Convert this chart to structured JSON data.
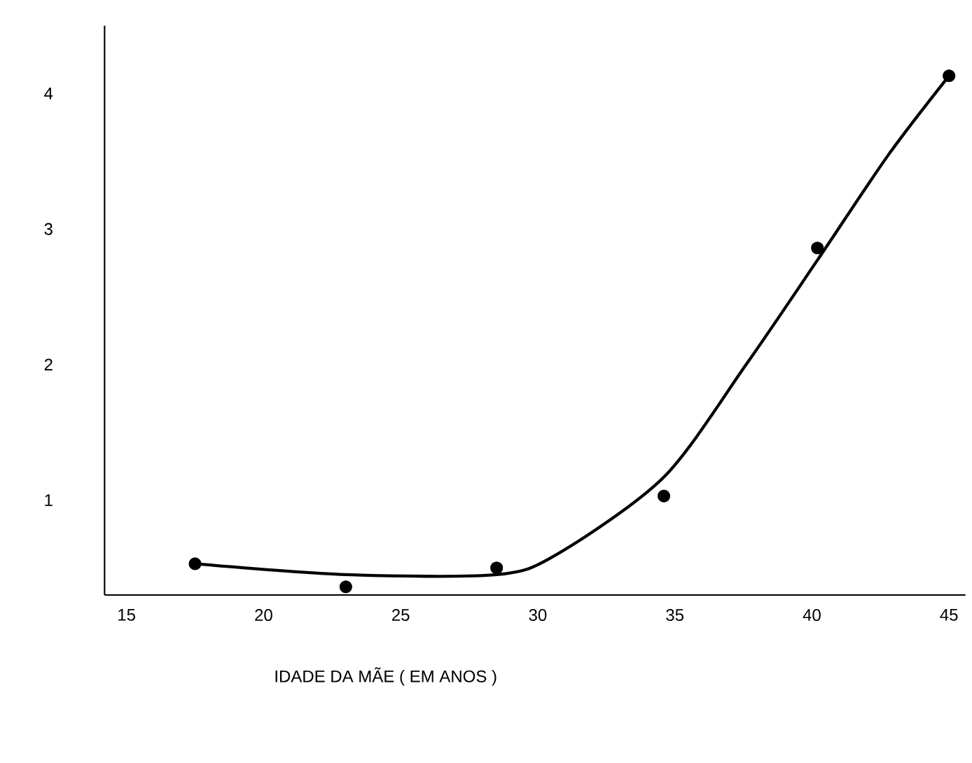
{
  "chart_data": {
    "type": "scatter",
    "xlabel": "IDADE DA MÃE ( EM ANOS )",
    "xlim": [
      14.2,
      45.6
    ],
    "xticks": [
      15,
      20,
      25,
      30,
      35,
      40,
      45
    ],
    "ylim": [
      0.3,
      4.5
    ],
    "yticks": [
      1,
      2,
      3,
      4
    ],
    "marker": "circle",
    "grid": false,
    "series": [
      {
        "color": "#000000",
        "x": [
          17.5,
          23,
          28.5,
          34.6,
          40.2,
          45
        ],
        "values": [
          0.53,
          0.36,
          0.5,
          1.03,
          2.86,
          4.13
        ]
      },
      {
        "type": "line",
        "color": "#000000",
        "marker": "none",
        "x": [
          17.5,
          23,
          28.5,
          30.7,
          34.6,
          37.6,
          40.2,
          42.8,
          45
        ],
        "values": [
          0.53,
          0.45,
          0.45,
          0.6,
          1.17,
          2.0,
          2.77,
          3.55,
          4.13
        ]
      }
    ]
  }
}
